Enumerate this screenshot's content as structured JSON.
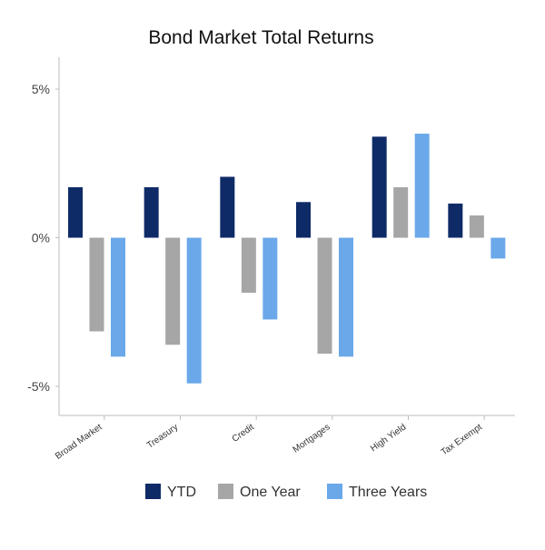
{
  "chart_data": {
    "type": "bar",
    "title": "Bond Market Total Returns",
    "xlabel": "",
    "ylabel": "",
    "categories": [
      "Broad Market",
      "Treasury",
      "Credit",
      "Mortgages",
      "High Yield",
      "Tax Exempt"
    ],
    "series": [
      {
        "name": "YTD",
        "color": "#0f2b67",
        "values": [
          1.7,
          1.7,
          2.05,
          1.2,
          3.4,
          1.15
        ]
      },
      {
        "name": "One Year",
        "color": "#a6a6a6",
        "values": [
          -3.15,
          -3.6,
          -1.85,
          -3.9,
          1.7,
          0.75
        ]
      },
      {
        "name": "Three Years",
        "color": "#6aa8ea",
        "values": [
          -4.0,
          -4.9,
          -2.75,
          -4.0,
          3.5,
          -0.7
        ]
      }
    ],
    "ylim": [
      -6,
      6
    ],
    "yticks": [
      5,
      0,
      -5
    ],
    "ytick_labels": [
      "5%",
      "0%",
      "-5%"
    ],
    "grid": false,
    "legend": "bottom"
  }
}
